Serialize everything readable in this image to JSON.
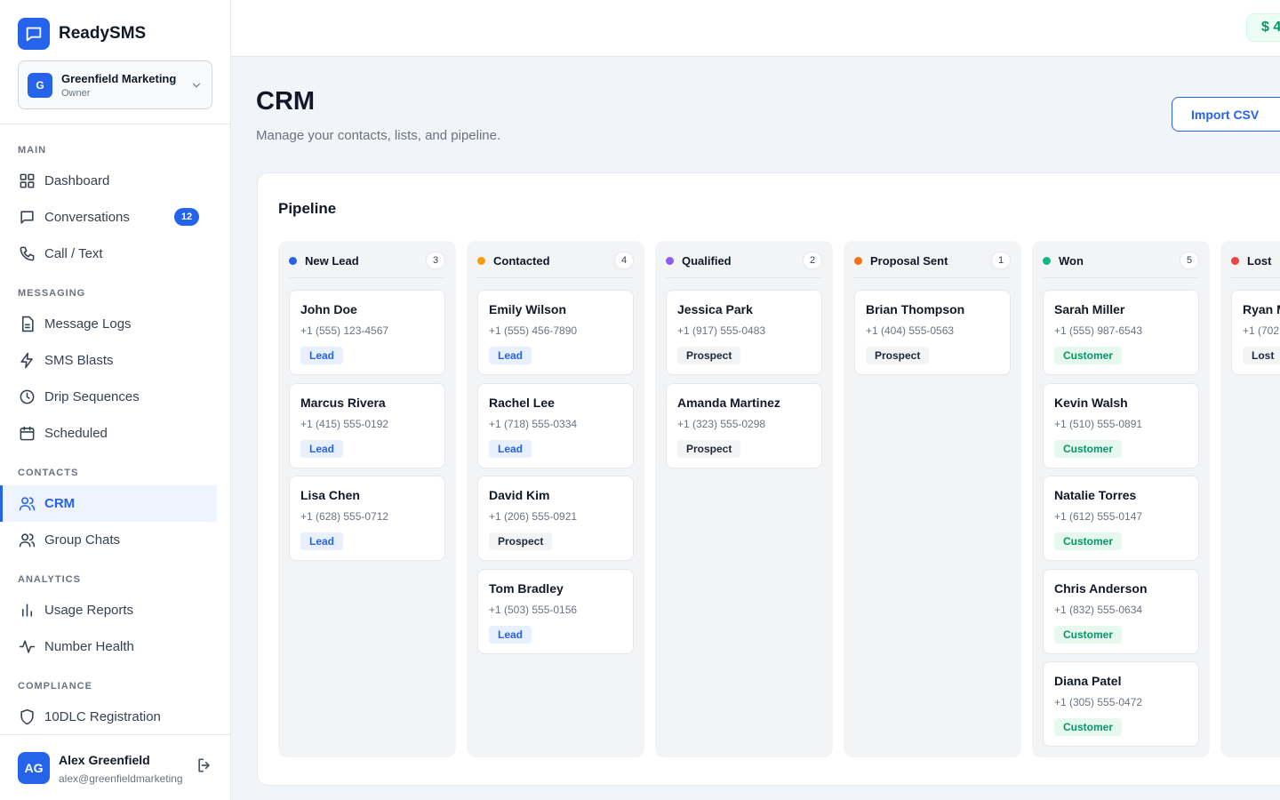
{
  "brand": {
    "name": "ReadySMS"
  },
  "org": {
    "initial": "G",
    "name": "Greenfield Marketing",
    "role": "Owner"
  },
  "nav": {
    "main_label": "MAIN",
    "dashboard": "Dashboard",
    "conversations": "Conversations",
    "conversations_badge": "12",
    "call_text": "Call / Text",
    "messaging_label": "MESSAGING",
    "message_logs": "Message Logs",
    "sms_blasts": "SMS Blasts",
    "drip_sequences": "Drip Sequences",
    "scheduled": "Scheduled",
    "contacts_label": "CONTACTS",
    "crm": "CRM",
    "group_chats": "Group Chats",
    "analytics_label": "ANALYTICS",
    "usage_reports": "Usage Reports",
    "number_health": "Number Health",
    "compliance_label": "COMPLIANCE",
    "tendlc": "10DLC Registration"
  },
  "user": {
    "initials": "AG",
    "name": "Alex Greenfield",
    "email": "alex@greenfieldmarketing"
  },
  "topbar": {
    "balance": "$ 4"
  },
  "page": {
    "title": "CRM",
    "subtitle": "Manage your contacts, lists, and pipeline.",
    "import_label": "Import CSV"
  },
  "pipeline": {
    "title": "Pipeline",
    "columns": [
      {
        "name": "New Lead",
        "count": "3",
        "color": "#2563eb",
        "cards": [
          {
            "name": "John Doe",
            "phone": "+1 (555) 123-4567",
            "tag": "Lead"
          },
          {
            "name": "Marcus Rivera",
            "phone": "+1 (415) 555-0192",
            "tag": "Lead"
          },
          {
            "name": "Lisa Chen",
            "phone": "+1 (628) 555-0712",
            "tag": "Lead"
          }
        ]
      },
      {
        "name": "Contacted",
        "count": "4",
        "color": "#f59e0b",
        "cards": [
          {
            "name": "Emily Wilson",
            "phone": "+1 (555) 456-7890",
            "tag": "Lead"
          },
          {
            "name": "Rachel Lee",
            "phone": "+1 (718) 555-0334",
            "tag": "Lead"
          },
          {
            "name": "David Kim",
            "phone": "+1 (206) 555-0921",
            "tag": "Prospect"
          },
          {
            "name": "Tom Bradley",
            "phone": "+1 (503) 555-0156",
            "tag": "Lead"
          }
        ]
      },
      {
        "name": "Qualified",
        "count": "2",
        "color": "#8b5cf6",
        "cards": [
          {
            "name": "Jessica Park",
            "phone": "+1 (917) 555-0483",
            "tag": "Prospect"
          },
          {
            "name": "Amanda Martinez",
            "phone": "+1 (323) 555-0298",
            "tag": "Prospect"
          }
        ]
      },
      {
        "name": "Proposal Sent",
        "count": "1",
        "color": "#f97316",
        "cards": [
          {
            "name": "Brian Thompson",
            "phone": "+1 (404) 555-0563",
            "tag": "Prospect"
          }
        ]
      },
      {
        "name": "Won",
        "count": "5",
        "color": "#10b981",
        "cards": [
          {
            "name": "Sarah Miller",
            "phone": "+1 (555) 987-6543",
            "tag": "Customer"
          },
          {
            "name": "Kevin Walsh",
            "phone": "+1 (510) 555-0891",
            "tag": "Customer"
          },
          {
            "name": "Natalie Torres",
            "phone": "+1 (612) 555-0147",
            "tag": "Customer"
          },
          {
            "name": "Chris Anderson",
            "phone": "+1 (832) 555-0634",
            "tag": "Customer"
          },
          {
            "name": "Diana Patel",
            "phone": "+1 (305) 555-0472",
            "tag": "Customer"
          }
        ]
      },
      {
        "name": "Lost",
        "count": "",
        "color": "#ef4444",
        "cards": [
          {
            "name": "Ryan M",
            "phone": "+1 (702",
            "tag": "Lost"
          }
        ]
      }
    ]
  }
}
